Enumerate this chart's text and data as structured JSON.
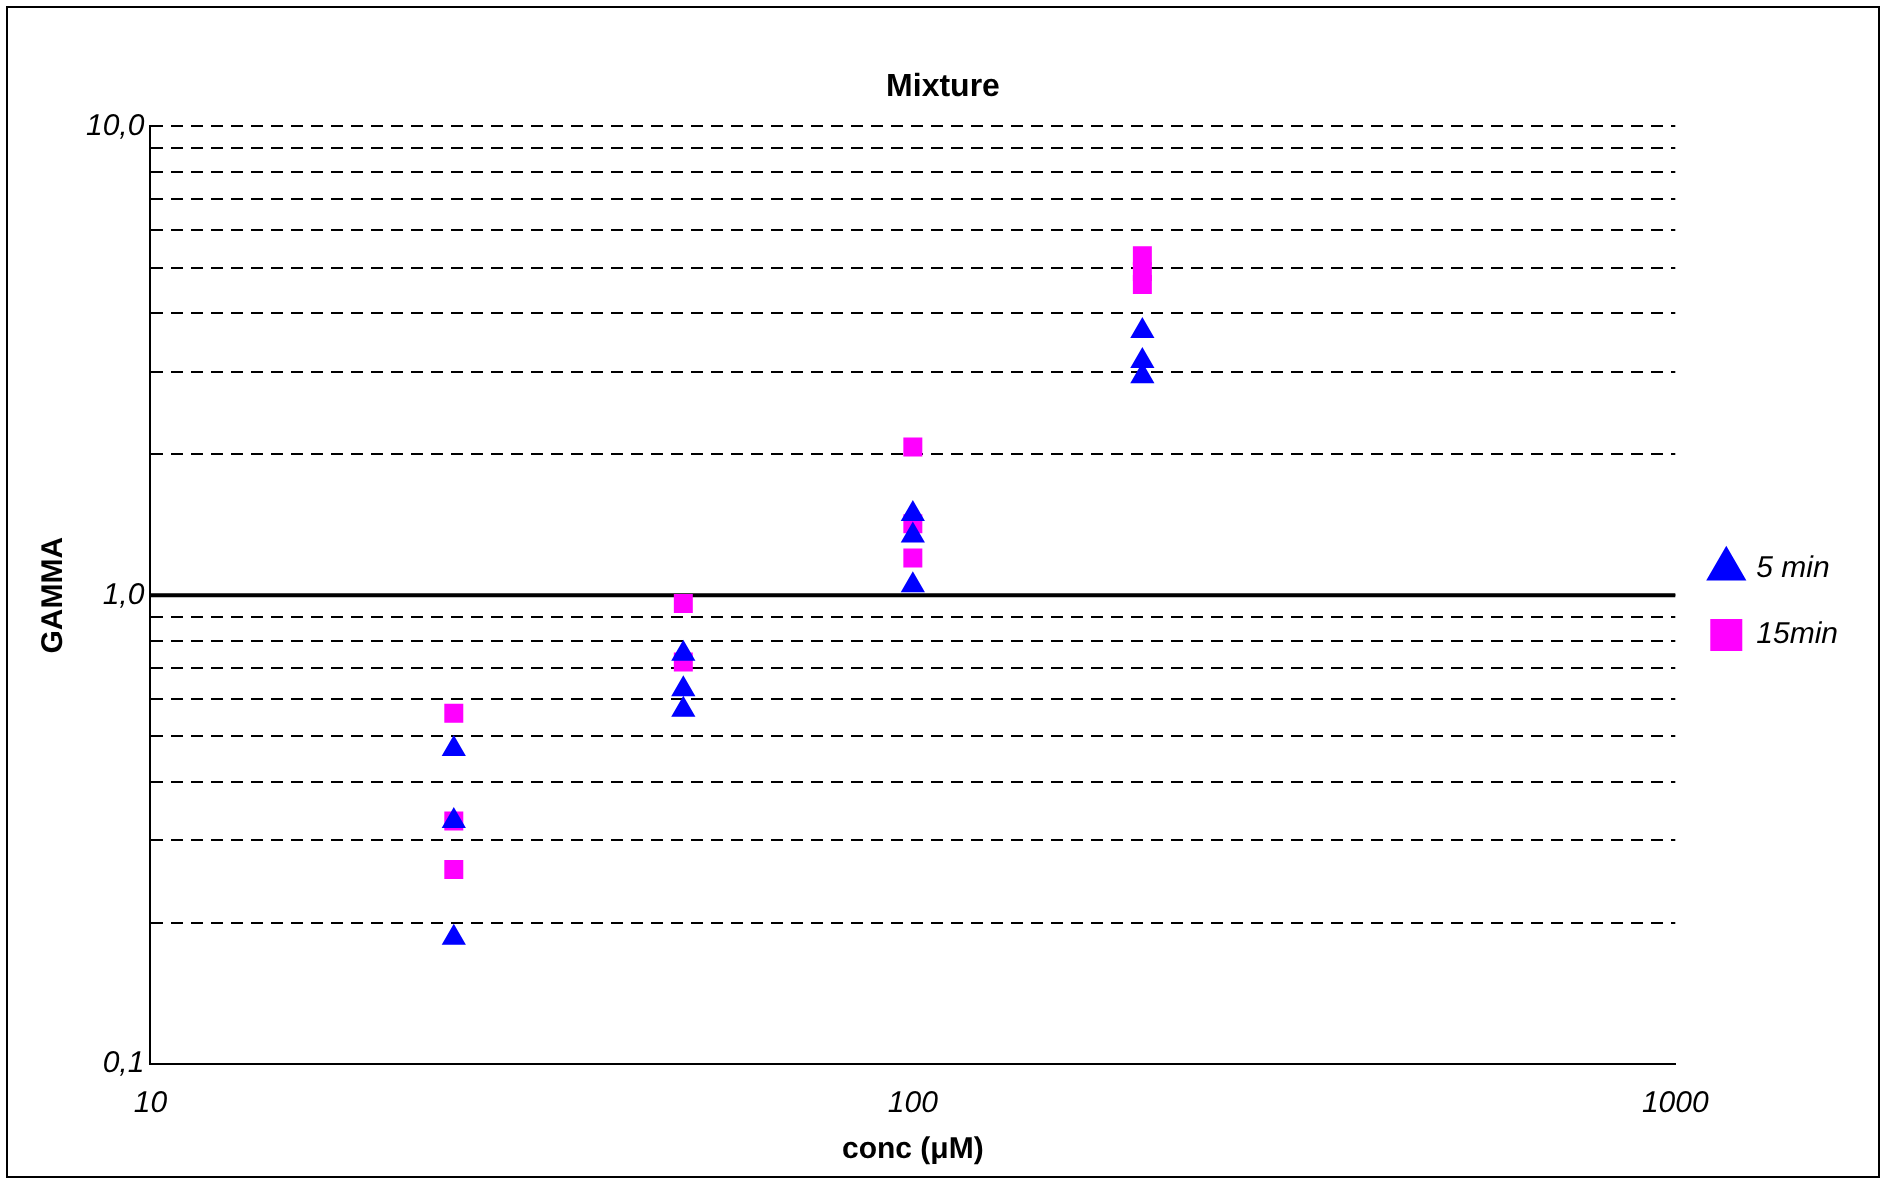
{
  "chart_data": {
    "type": "scatter",
    "title": "Mixture",
    "xlabel": "conc (μM)",
    "ylabel": "GAMMA",
    "log": "xy",
    "xlim": [
      10,
      1000
    ],
    "xticks": [
      10,
      100,
      1000
    ],
    "ylim": [
      0.1,
      10
    ],
    "yticks": [
      {
        "value": 0.1,
        "label": "0,1"
      },
      {
        "value": 0.2,
        "label": null
      },
      {
        "value": 0.3,
        "label": null
      },
      {
        "value": 0.4,
        "label": null
      },
      {
        "value": 0.5,
        "label": null
      },
      {
        "value": 0.6,
        "label": null
      },
      {
        "value": 0.7,
        "label": null
      },
      {
        "value": 0.8,
        "label": null
      },
      {
        "value": 0.9,
        "label": null
      },
      {
        "value": 1,
        "label": "1,0"
      },
      {
        "value": 2,
        "label": null
      },
      {
        "value": 3,
        "label": null
      },
      {
        "value": 4,
        "label": null
      },
      {
        "value": 5,
        "label": null
      },
      {
        "value": 6,
        "label": null
      },
      {
        "value": 7,
        "label": null
      },
      {
        "value": 8,
        "label": null
      },
      {
        "value": 9,
        "label": null
      },
      {
        "value": 10,
        "label": "10,0"
      }
    ],
    "grid": "y",
    "legend": "right",
    "ref_lines": [
      {
        "axis": "y",
        "value": 1,
        "color": "#000000",
        "line_style": "solid"
      }
    ],
    "series": [
      {
        "name": "5 min",
        "color": "#0000ff",
        "marker": "triangle",
        "x": [
          25,
          25,
          25,
          50,
          50,
          50,
          100,
          100,
          100,
          200,
          200,
          200
        ],
        "values": [
          0.47,
          0.33,
          0.186,
          0.75,
          0.63,
          0.57,
          1.49,
          1.34,
          1.05,
          3.66,
          3.16,
          2.93
        ]
      },
      {
        "name": "15min",
        "color": "#ff00ff",
        "marker": "square",
        "x": [
          25,
          25,
          25,
          50,
          50,
          100,
          100,
          100,
          200,
          200,
          200
        ],
        "values": [
          0.56,
          0.33,
          0.26,
          0.96,
          0.72,
          2.07,
          1.42,
          1.2,
          5.3,
          4.9,
          4.6
        ]
      }
    ]
  }
}
